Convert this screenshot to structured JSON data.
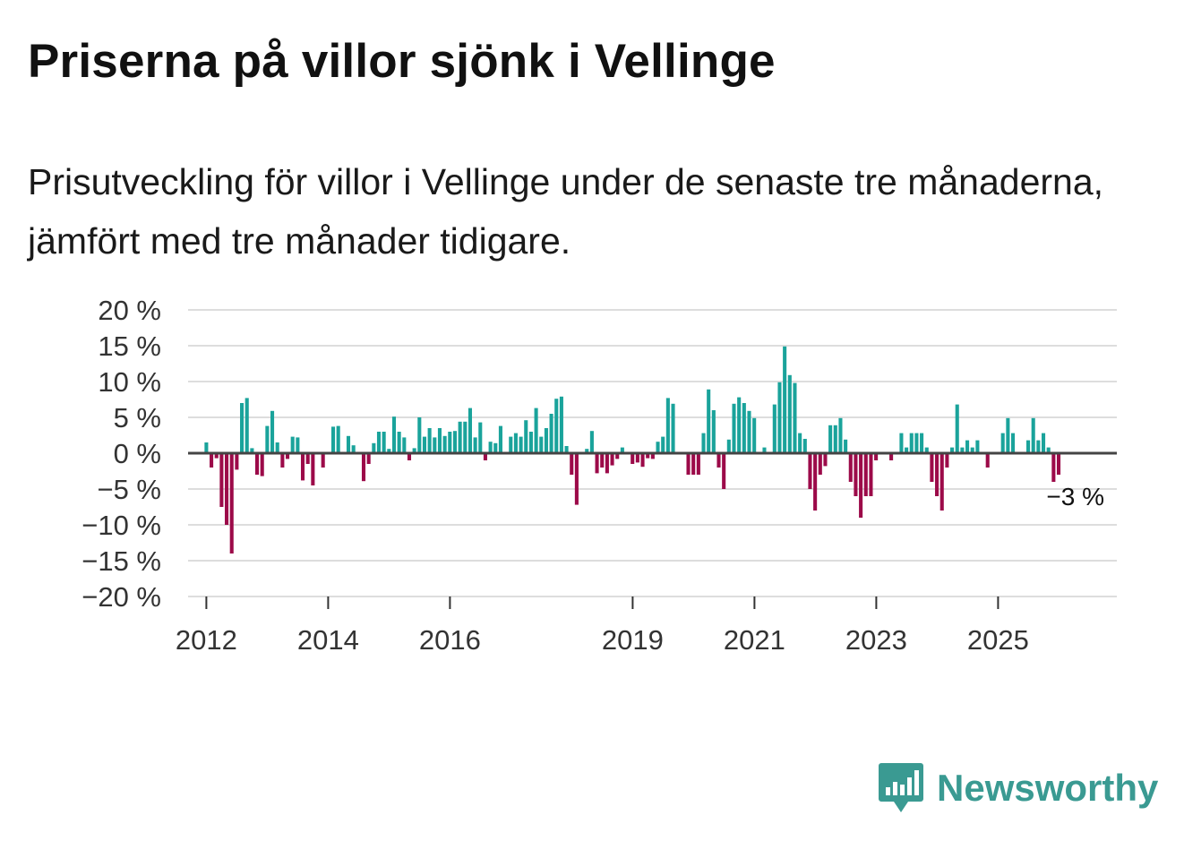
{
  "header": {
    "title": "Priserna på villor sjönk i Vellinge",
    "subtitle": "Prisutveckling för villor i Vellinge under de senaste tre månaderna, jämfört med tre månader tidigare."
  },
  "chart_data": {
    "type": "bar",
    "title": "Priserna på villor sjönk i Vellinge",
    "xlabel": "",
    "ylabel": "",
    "ylim": [
      -20,
      20
    ],
    "y_ticks": [
      20,
      15,
      10,
      5,
      0,
      -5,
      -10,
      -15,
      -20
    ],
    "y_tick_labels": [
      "20 %",
      "15 %",
      "10 %",
      "5 %",
      "0 %",
      "−5 %",
      "−10 %",
      "−15 %",
      "−20 %"
    ],
    "x_tick_labels": [
      "2012",
      "2014",
      "2016",
      "2019",
      "2021",
      "2023",
      "2025"
    ],
    "x_tick_values": [
      2012,
      2014,
      2016,
      2019,
      2021,
      2023,
      2025
    ],
    "x_start": 2011.7,
    "x_end": 2026.95,
    "bar_start": 2012.0,
    "bar_step": 0.0833,
    "positive_color": "#1aa39b",
    "negative_color": "#9c0a49",
    "annotation": {
      "label": "−3 %",
      "value": -3
    },
    "values": [
      1.5,
      -2,
      -0.7,
      -7.5,
      -10,
      -14,
      -2.3,
      7,
      7.7,
      0.7,
      -3,
      -3.2,
      3.8,
      5.9,
      1.5,
      -2,
      -0.8,
      2.3,
      2.2,
      -3.8,
      -1.5,
      -4.5,
      0,
      -2,
      0,
      3.7,
      3.8,
      0,
      2.4,
      1.1,
      0,
      -3.9,
      -1.5,
      1.4,
      3,
      3,
      0.6,
      5.1,
      3,
      2.2,
      -1,
      0.7,
      5,
      2.3,
      3.5,
      2.2,
      3.5,
      2.4,
      3,
      3.1,
      4.4,
      4.4,
      6.3,
      2.2,
      4.3,
      -1,
      1.6,
      1.4,
      3.8,
      0,
      2.3,
      2.8,
      2.3,
      4.6,
      3,
      6.3,
      2.3,
      3.5,
      5.5,
      7.6,
      7.9,
      1,
      -3,
      -7.2,
      0,
      0.6,
      3.1,
      -2.8,
      -2,
      -2.8,
      -1.7,
      -0.8,
      0.8,
      0,
      -1.5,
      -1.3,
      -1.9,
      -0.7,
      -0.8,
      1.6,
      2.3,
      7.7,
      6.9,
      0,
      0,
      -3,
      -3,
      -3,
      2.8,
      8.9,
      6,
      -2,
      -5,
      1.9,
      6.9,
      7.8,
      7,
      5.9,
      4.9,
      0,
      0.8,
      0,
      6.8,
      9.9,
      14.9,
      10.9,
      9.8,
      2.8,
      2,
      -5,
      -8,
      -3,
      -1.8,
      3.9,
      3.9,
      4.9,
      1.9,
      -4,
      -6,
      -9,
      -6,
      -6,
      -1,
      0,
      0,
      -1,
      0,
      2.8,
      0.8,
      2.8,
      2.8,
      2.8,
      0.8,
      -4,
      -6,
      -8,
      -2,
      0.8,
      6.8,
      0.8,
      1.8,
      0.8,
      1.8,
      0,
      -2,
      0,
      0,
      2.8,
      4.9,
      2.8,
      0,
      0,
      1.8,
      4.9,
      1.8,
      2.8,
      0.8,
      -4,
      -3
    ]
  },
  "brand": {
    "name": "Newsworthy",
    "color": "#3a9a92",
    "icon": "newsworthy-logo-icon"
  }
}
